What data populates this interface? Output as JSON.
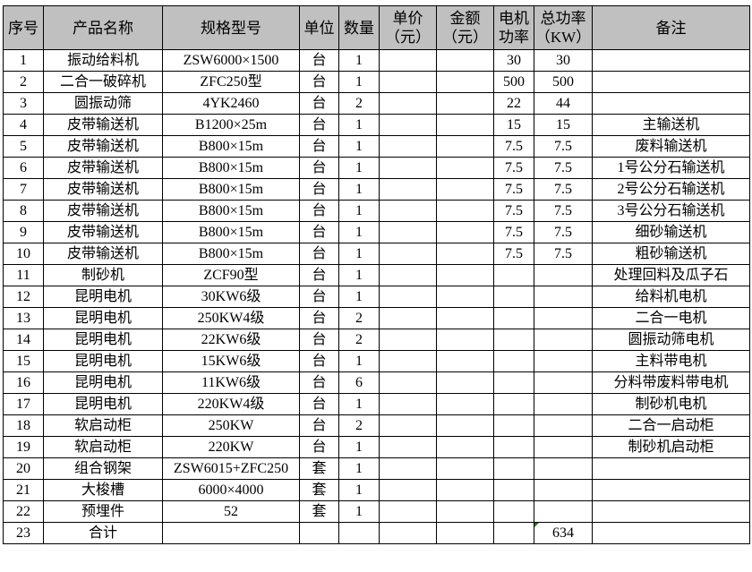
{
  "headers": [
    "序号",
    "产品名称",
    "规格型号",
    "单位",
    "数量",
    "单价\n（元）",
    "金额\n（元）",
    "电机\n功率",
    "总功率\n（KW）",
    "备注"
  ],
  "header_lines": [
    [
      "序号"
    ],
    [
      "产品名称"
    ],
    [
      "规格型号"
    ],
    [
      "单位"
    ],
    [
      "数量"
    ],
    [
      "单价",
      "（元）"
    ],
    [
      "金额",
      "（元）"
    ],
    [
      "电机",
      "功率"
    ],
    [
      "总功率",
      "（KW）"
    ],
    [
      "备注"
    ]
  ],
  "header_bg": "#c0c0c0",
  "rows": [
    [
      "1",
      "振动给料机",
      "ZSW6000×1500",
      "台",
      "1",
      "",
      "",
      "30",
      "30",
      ""
    ],
    [
      "2",
      "二合一破碎机",
      "ZFC250型",
      "台",
      "1",
      "",
      "",
      "500",
      "500",
      ""
    ],
    [
      "3",
      "圆振动筛",
      "4YK2460",
      "台",
      "2",
      "",
      "",
      "22",
      "44",
      ""
    ],
    [
      "4",
      "皮带输送机",
      "B1200×25m",
      "台",
      "1",
      "",
      "",
      "15",
      "15",
      "主输送机"
    ],
    [
      "5",
      "皮带输送机",
      "B800×15m",
      "台",
      "1",
      "",
      "",
      "7.5",
      "7.5",
      "废料输送机"
    ],
    [
      "6",
      "皮带输送机",
      "B800×15m",
      "台",
      "1",
      "",
      "",
      "7.5",
      "7.5",
      "1号公分石输送机"
    ],
    [
      "7",
      "皮带输送机",
      "B800×15m",
      "台",
      "1",
      "",
      "",
      "7.5",
      "7.5",
      "2号公分石输送机"
    ],
    [
      "8",
      "皮带输送机",
      "B800×15m",
      "台",
      "1",
      "",
      "",
      "7.5",
      "7.5",
      "3号公分石输送机"
    ],
    [
      "9",
      "皮带输送机",
      "B800×15m",
      "台",
      "1",
      "",
      "",
      "7.5",
      "7.5",
      "细砂输送机"
    ],
    [
      "10",
      "皮带输送机",
      "B800×15m",
      "台",
      "1",
      "",
      "",
      "7.5",
      "7.5",
      "粗砂输送机"
    ],
    [
      "11",
      "制砂机",
      "ZCF90型",
      "台",
      "1",
      "",
      "",
      "",
      "",
      "处理回料及瓜子石"
    ],
    [
      "12",
      "昆明电机",
      "30KW6级",
      "台",
      "1",
      "",
      "",
      "",
      "",
      "给料机电机"
    ],
    [
      "13",
      "昆明电机",
      "250KW4级",
      "台",
      "2",
      "",
      "",
      "",
      "",
      "二合一电机"
    ],
    [
      "14",
      "昆明电机",
      "22KW6级",
      "台",
      "2",
      "",
      "",
      "",
      "",
      "圆振动筛电机"
    ],
    [
      "15",
      "昆明电机",
      "15KW6级",
      "台",
      "1",
      "",
      "",
      "",
      "",
      "主料带电机"
    ],
    [
      "16",
      "昆明电机",
      "11KW6级",
      "台",
      "6",
      "",
      "",
      "",
      "",
      "分料带废料带电机"
    ],
    [
      "17",
      "昆明电机",
      "220KW4级",
      "台",
      "1",
      "",
      "",
      "",
      "",
      "制砂机电机"
    ],
    [
      "18",
      "软启动柜",
      "250KW",
      "台",
      "2",
      "",
      "",
      "",
      "",
      "二合一启动柜"
    ],
    [
      "19",
      "软启动柜",
      "220KW",
      "台",
      "1",
      "",
      "",
      "",
      "",
      "制砂机启动柜"
    ],
    [
      "20",
      "组合钢架",
      "ZSW6015+ZFC250",
      "套",
      "1",
      "",
      "",
      "",
      "",
      ""
    ],
    [
      "21",
      "大梭槽",
      "6000×4000",
      "套",
      "1",
      "",
      "",
      "",
      "",
      ""
    ],
    [
      "22",
      "预埋件",
      "52",
      "套",
      "1",
      "",
      "",
      "",
      "",
      ""
    ],
    [
      "23",
      "合计",
      "",
      "",
      "",
      "",
      "",
      "",
      "634",
      ""
    ]
  ]
}
